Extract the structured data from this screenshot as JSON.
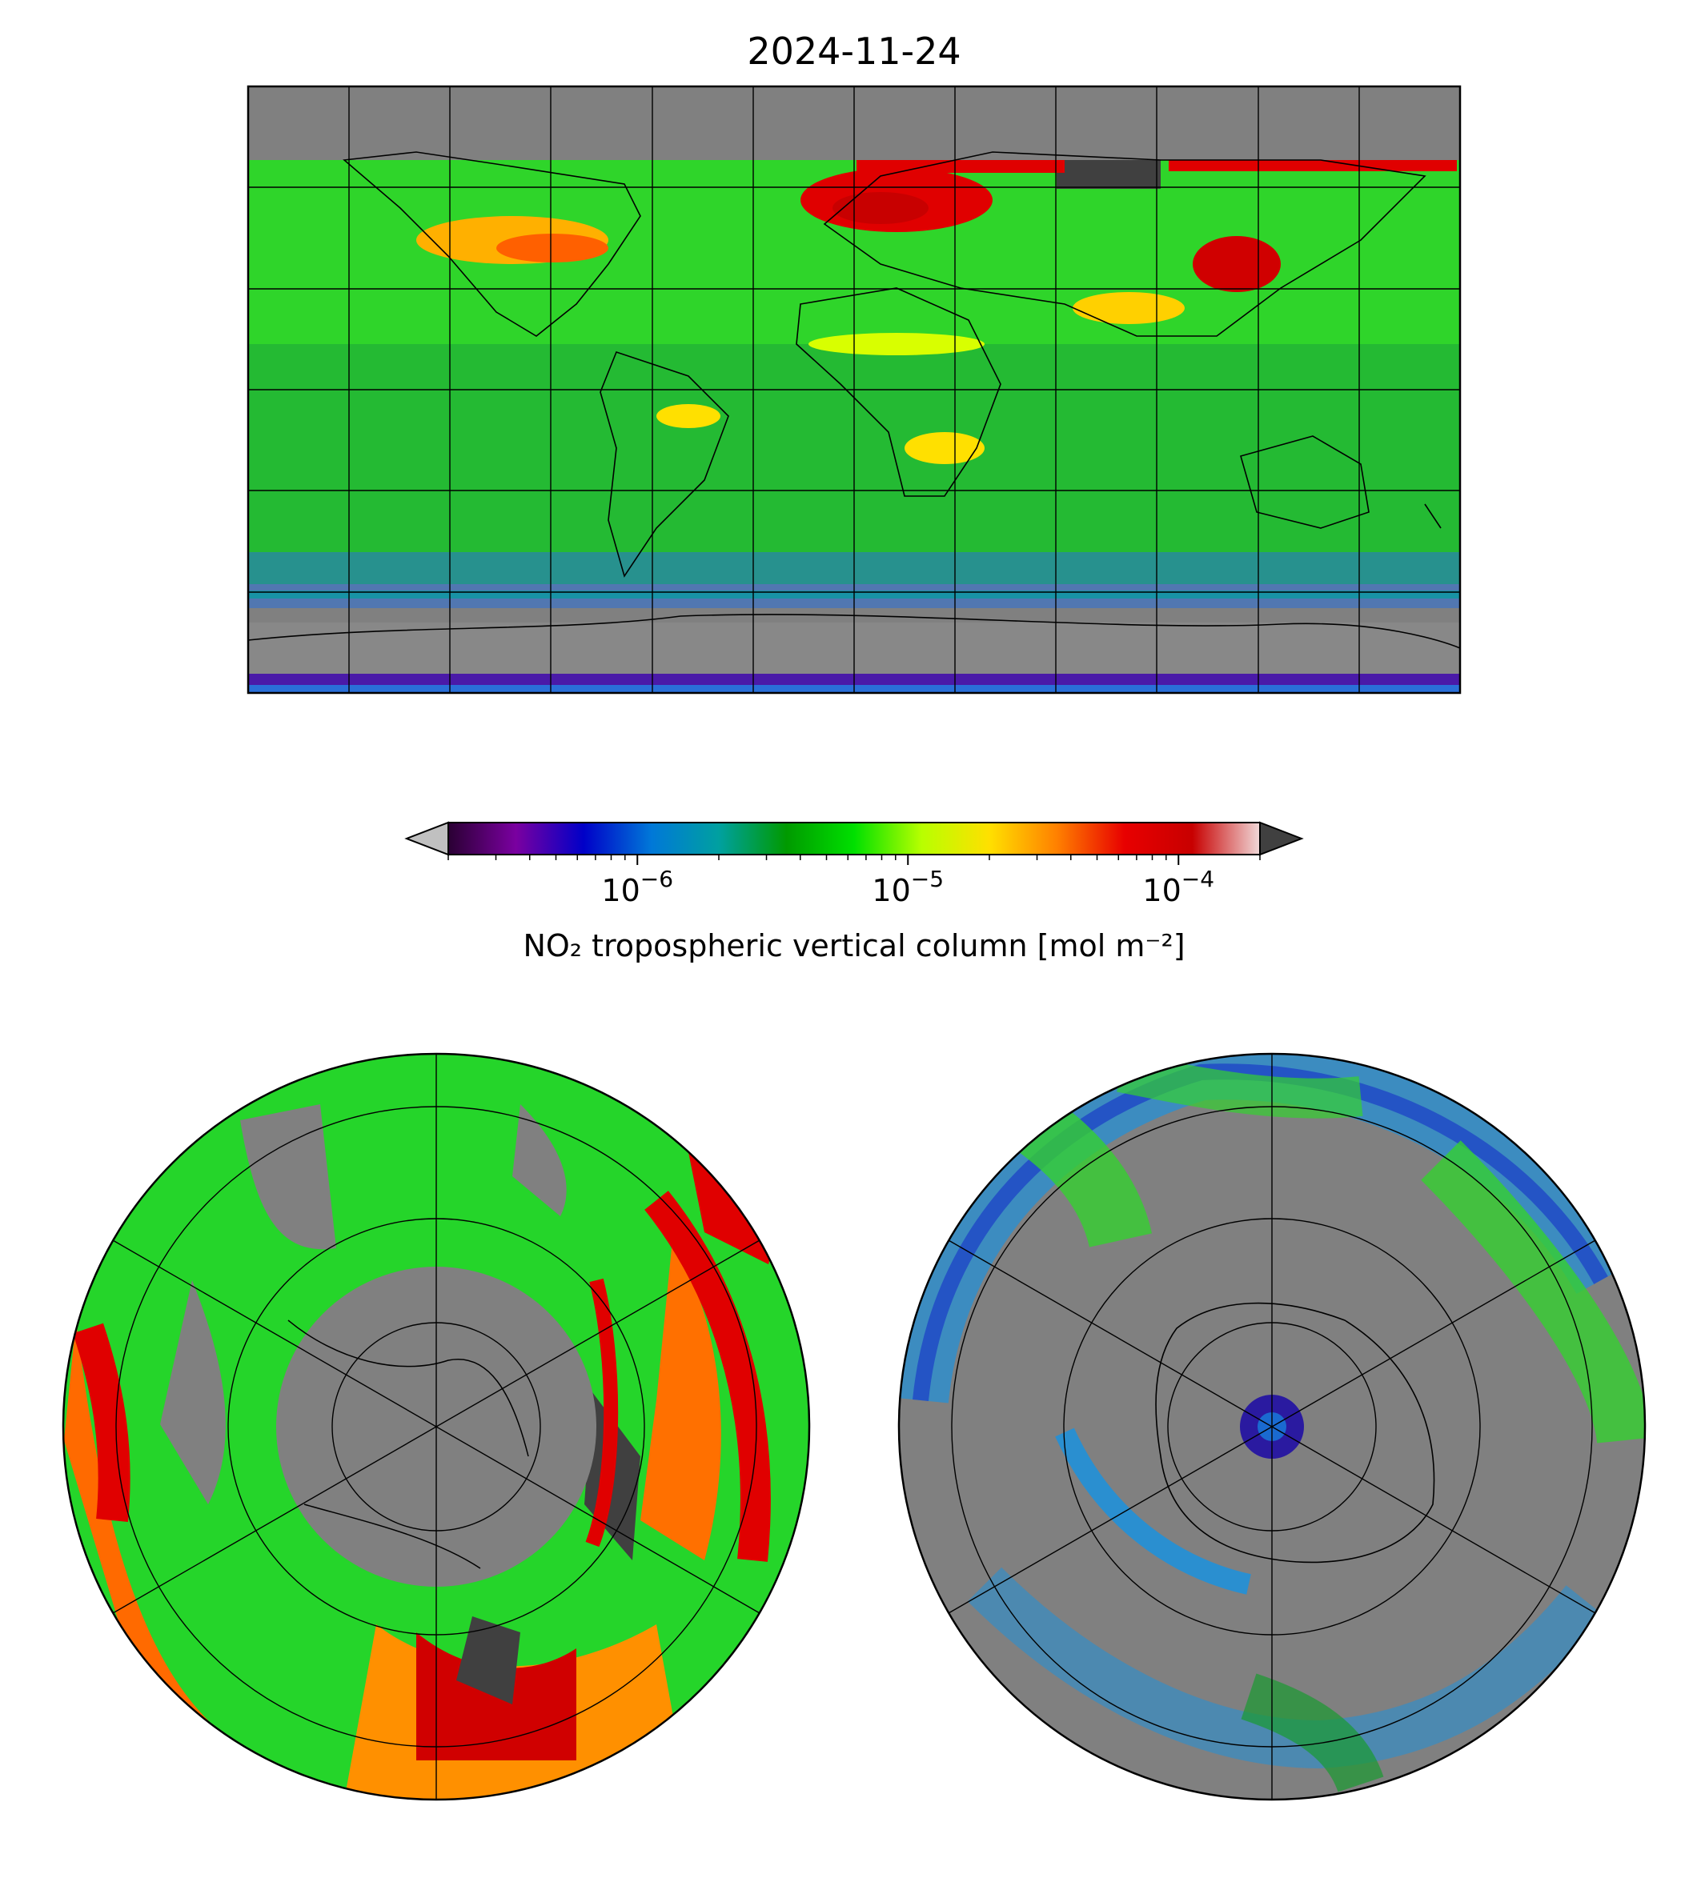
{
  "figure": {
    "title": "2024-11-24"
  },
  "colorbar": {
    "label": "NO₂ tropospheric vertical column [mol m⁻²]",
    "scale": "log",
    "range": [
      2e-07,
      0.0002
    ],
    "extend": "both",
    "ticks": [
      {
        "value": 1e-06,
        "base": "10",
        "exp": "−6"
      },
      {
        "value": 1e-05,
        "base": "10",
        "exp": "−5"
      },
      {
        "value": 0.0001,
        "base": "10",
        "exp": "−4"
      }
    ],
    "colors": [
      "#2a0033",
      "#7a00a0",
      "#0000c8",
      "#0078d8",
      "#00a0a0",
      "#009a00",
      "#00e000",
      "#b8ff00",
      "#ffe000",
      "#ff8000",
      "#e80000",
      "#c80000",
      "#f0d8d8"
    ],
    "under_color": "#c0c0c0",
    "over_color": "#404040"
  },
  "maps": {
    "global": {
      "projection": "plate-carree",
      "no_data_color": "#808080"
    },
    "north_polar": {
      "projection": "north-polar-stereographic"
    },
    "south_polar": {
      "projection": "south-polar-stereographic"
    }
  }
}
